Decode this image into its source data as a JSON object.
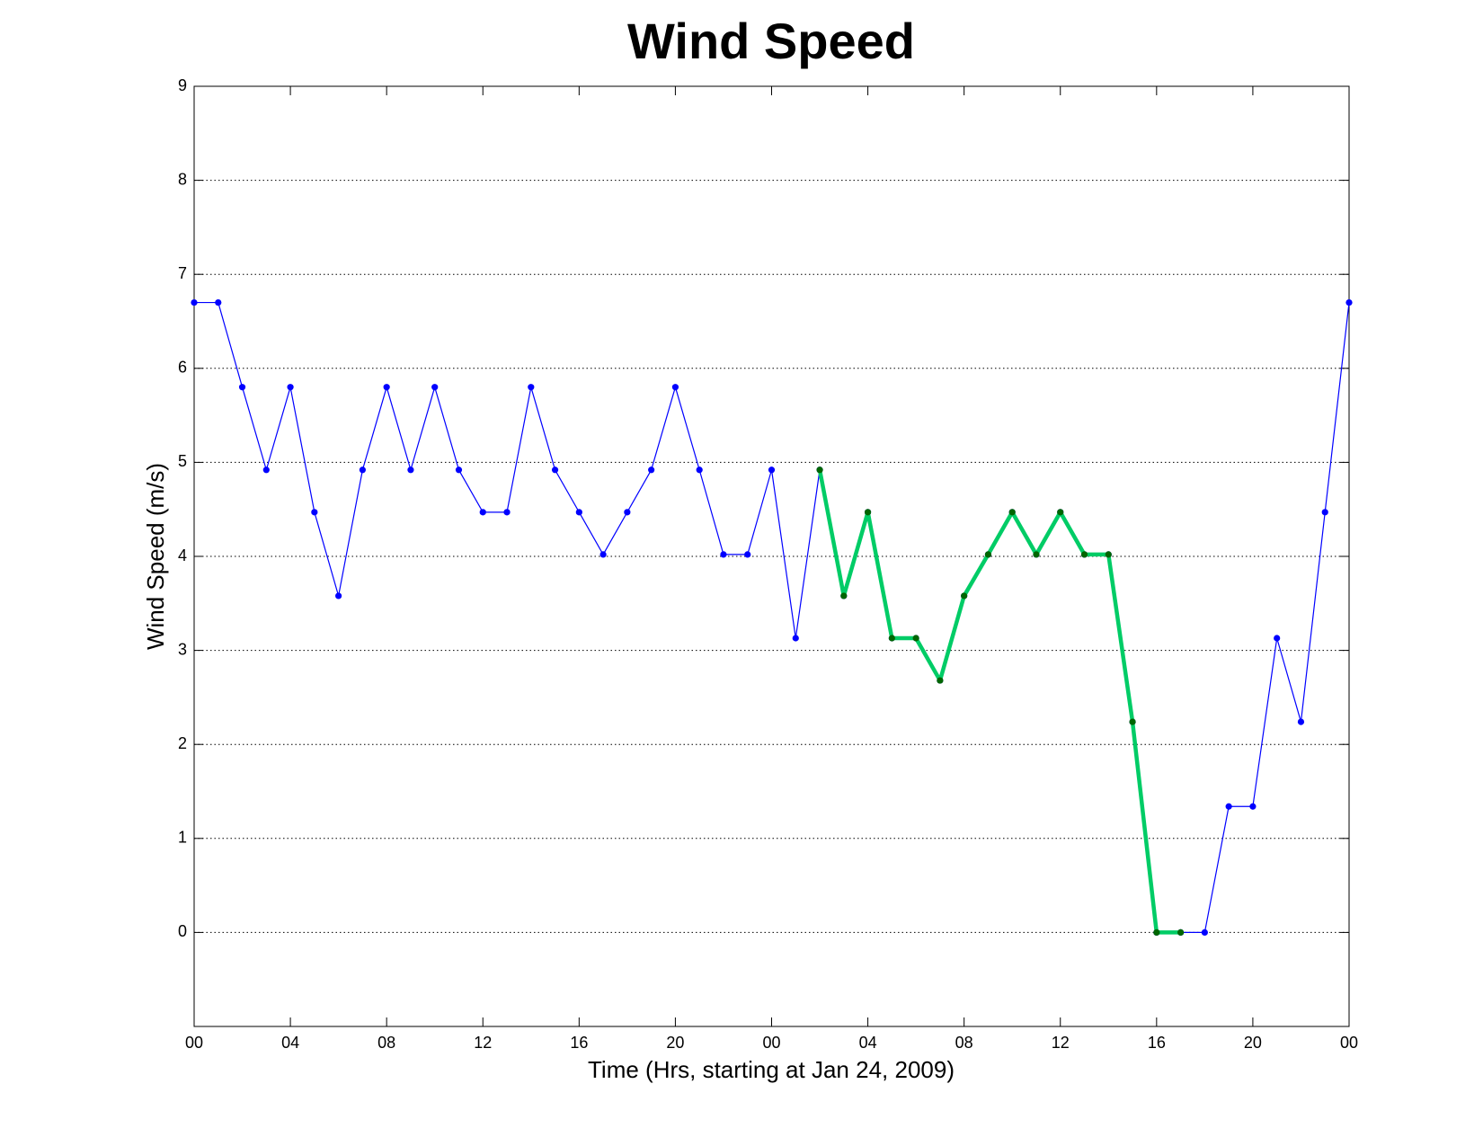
{
  "chart_data": {
    "type": "line",
    "title": "Wind Speed",
    "xlabel": "Time (Hrs, starting at Jan 24, 2009)",
    "ylabel": "Wind Speed (m/s)",
    "xlim": [
      0,
      48
    ],
    "xticks": [
      {
        "value": 0,
        "label": "00"
      },
      {
        "value": 4,
        "label": "04"
      },
      {
        "value": 8,
        "label": "08"
      },
      {
        "value": 12,
        "label": "12"
      },
      {
        "value": 16,
        "label": "16"
      },
      {
        "value": 20,
        "label": "20"
      },
      {
        "value": 24,
        "label": "00"
      },
      {
        "value": 28,
        "label": "04"
      },
      {
        "value": 32,
        "label": "08"
      },
      {
        "value": 36,
        "label": "12"
      },
      {
        "value": 40,
        "label": "16"
      },
      {
        "value": 44,
        "label": "20"
      },
      {
        "value": 48,
        "label": "00"
      }
    ],
    "ylim": [
      -1,
      9
    ],
    "yticks": [
      0,
      1,
      2,
      3,
      4,
      5,
      6,
      7,
      8,
      9
    ],
    "grid": true,
    "series": [
      {
        "color": "#0000ff",
        "marker_color": "#0000ff",
        "x": [
          0,
          1,
          2,
          3,
          4,
          5,
          6,
          7,
          8,
          9,
          10,
          11,
          12,
          13,
          14,
          15,
          16,
          17,
          18,
          19,
          20,
          21,
          22,
          23,
          24,
          25,
          26,
          27,
          28,
          29,
          30,
          31,
          32,
          33,
          34,
          35,
          36,
          37,
          38,
          39,
          40,
          41,
          42,
          43,
          44,
          45,
          46,
          47,
          48
        ],
        "values": [
          6.7,
          6.7,
          5.8,
          4.92,
          5.8,
          4.47,
          3.58,
          4.92,
          5.8,
          4.92,
          5.8,
          4.92,
          4.47,
          4.47,
          5.8,
          4.92,
          4.47,
          4.02,
          4.47,
          4.92,
          5.8,
          4.92,
          4.02,
          4.02,
          4.92,
          3.13,
          4.92,
          3.58,
          4.47,
          3.13,
          3.13,
          2.68,
          3.58,
          4.02,
          4.47,
          4.02,
          4.47,
          4.02,
          4.02,
          2.24,
          0,
          0,
          0,
          1.34,
          1.34,
          3.13,
          2.24,
          4.47,
          6.7
        ]
      },
      {
        "color": "#00cc66",
        "marker_color": "#006600",
        "x": [
          26,
          27,
          28,
          29,
          30,
          31,
          32,
          33,
          34,
          35,
          36,
          37,
          38,
          39,
          40,
          41
        ],
        "values": [
          4.92,
          3.58,
          4.47,
          3.13,
          3.13,
          2.68,
          3.58,
          4.02,
          4.47,
          4.02,
          4.47,
          4.02,
          4.02,
          2.24,
          0,
          0
        ]
      }
    ]
  }
}
